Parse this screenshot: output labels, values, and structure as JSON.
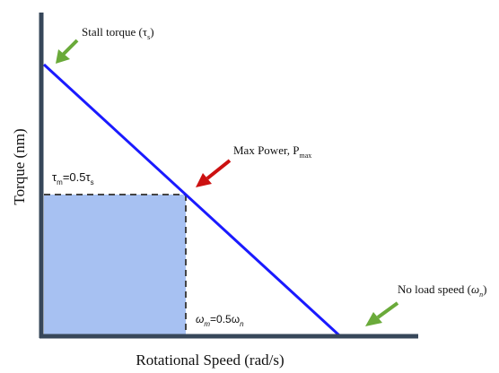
{
  "labels": {
    "y_axis": "Torque (nm)",
    "x_axis": "Rotational Speed (rad/s)",
    "stall": {
      "prefix": "Stall torque (",
      "symbol": "τ",
      "sub": "s",
      "suffix": ")"
    },
    "max_power": {
      "prefix": "Max Power, P",
      "sub": "max"
    },
    "no_load": {
      "prefix": "No load speed (",
      "symbol": "ω",
      "sub": "n",
      "suffix": ")"
    },
    "tau_m": {
      "symbol": "τ",
      "sub": "m",
      "rhs": "=0.5τ",
      "rhs_sub": "s"
    },
    "omega_m": {
      "symbol": "ω",
      "sub": "m",
      "rhs": "=0.5ω",
      "rhs_sub": "n"
    }
  },
  "colors": {
    "axis": "#37475a",
    "curve": "#1a1aff",
    "fill": "#a7c1f2",
    "dash": "#444444",
    "arrow_green": "#6aaa3a",
    "arrow_red": "#cc1111"
  }
}
